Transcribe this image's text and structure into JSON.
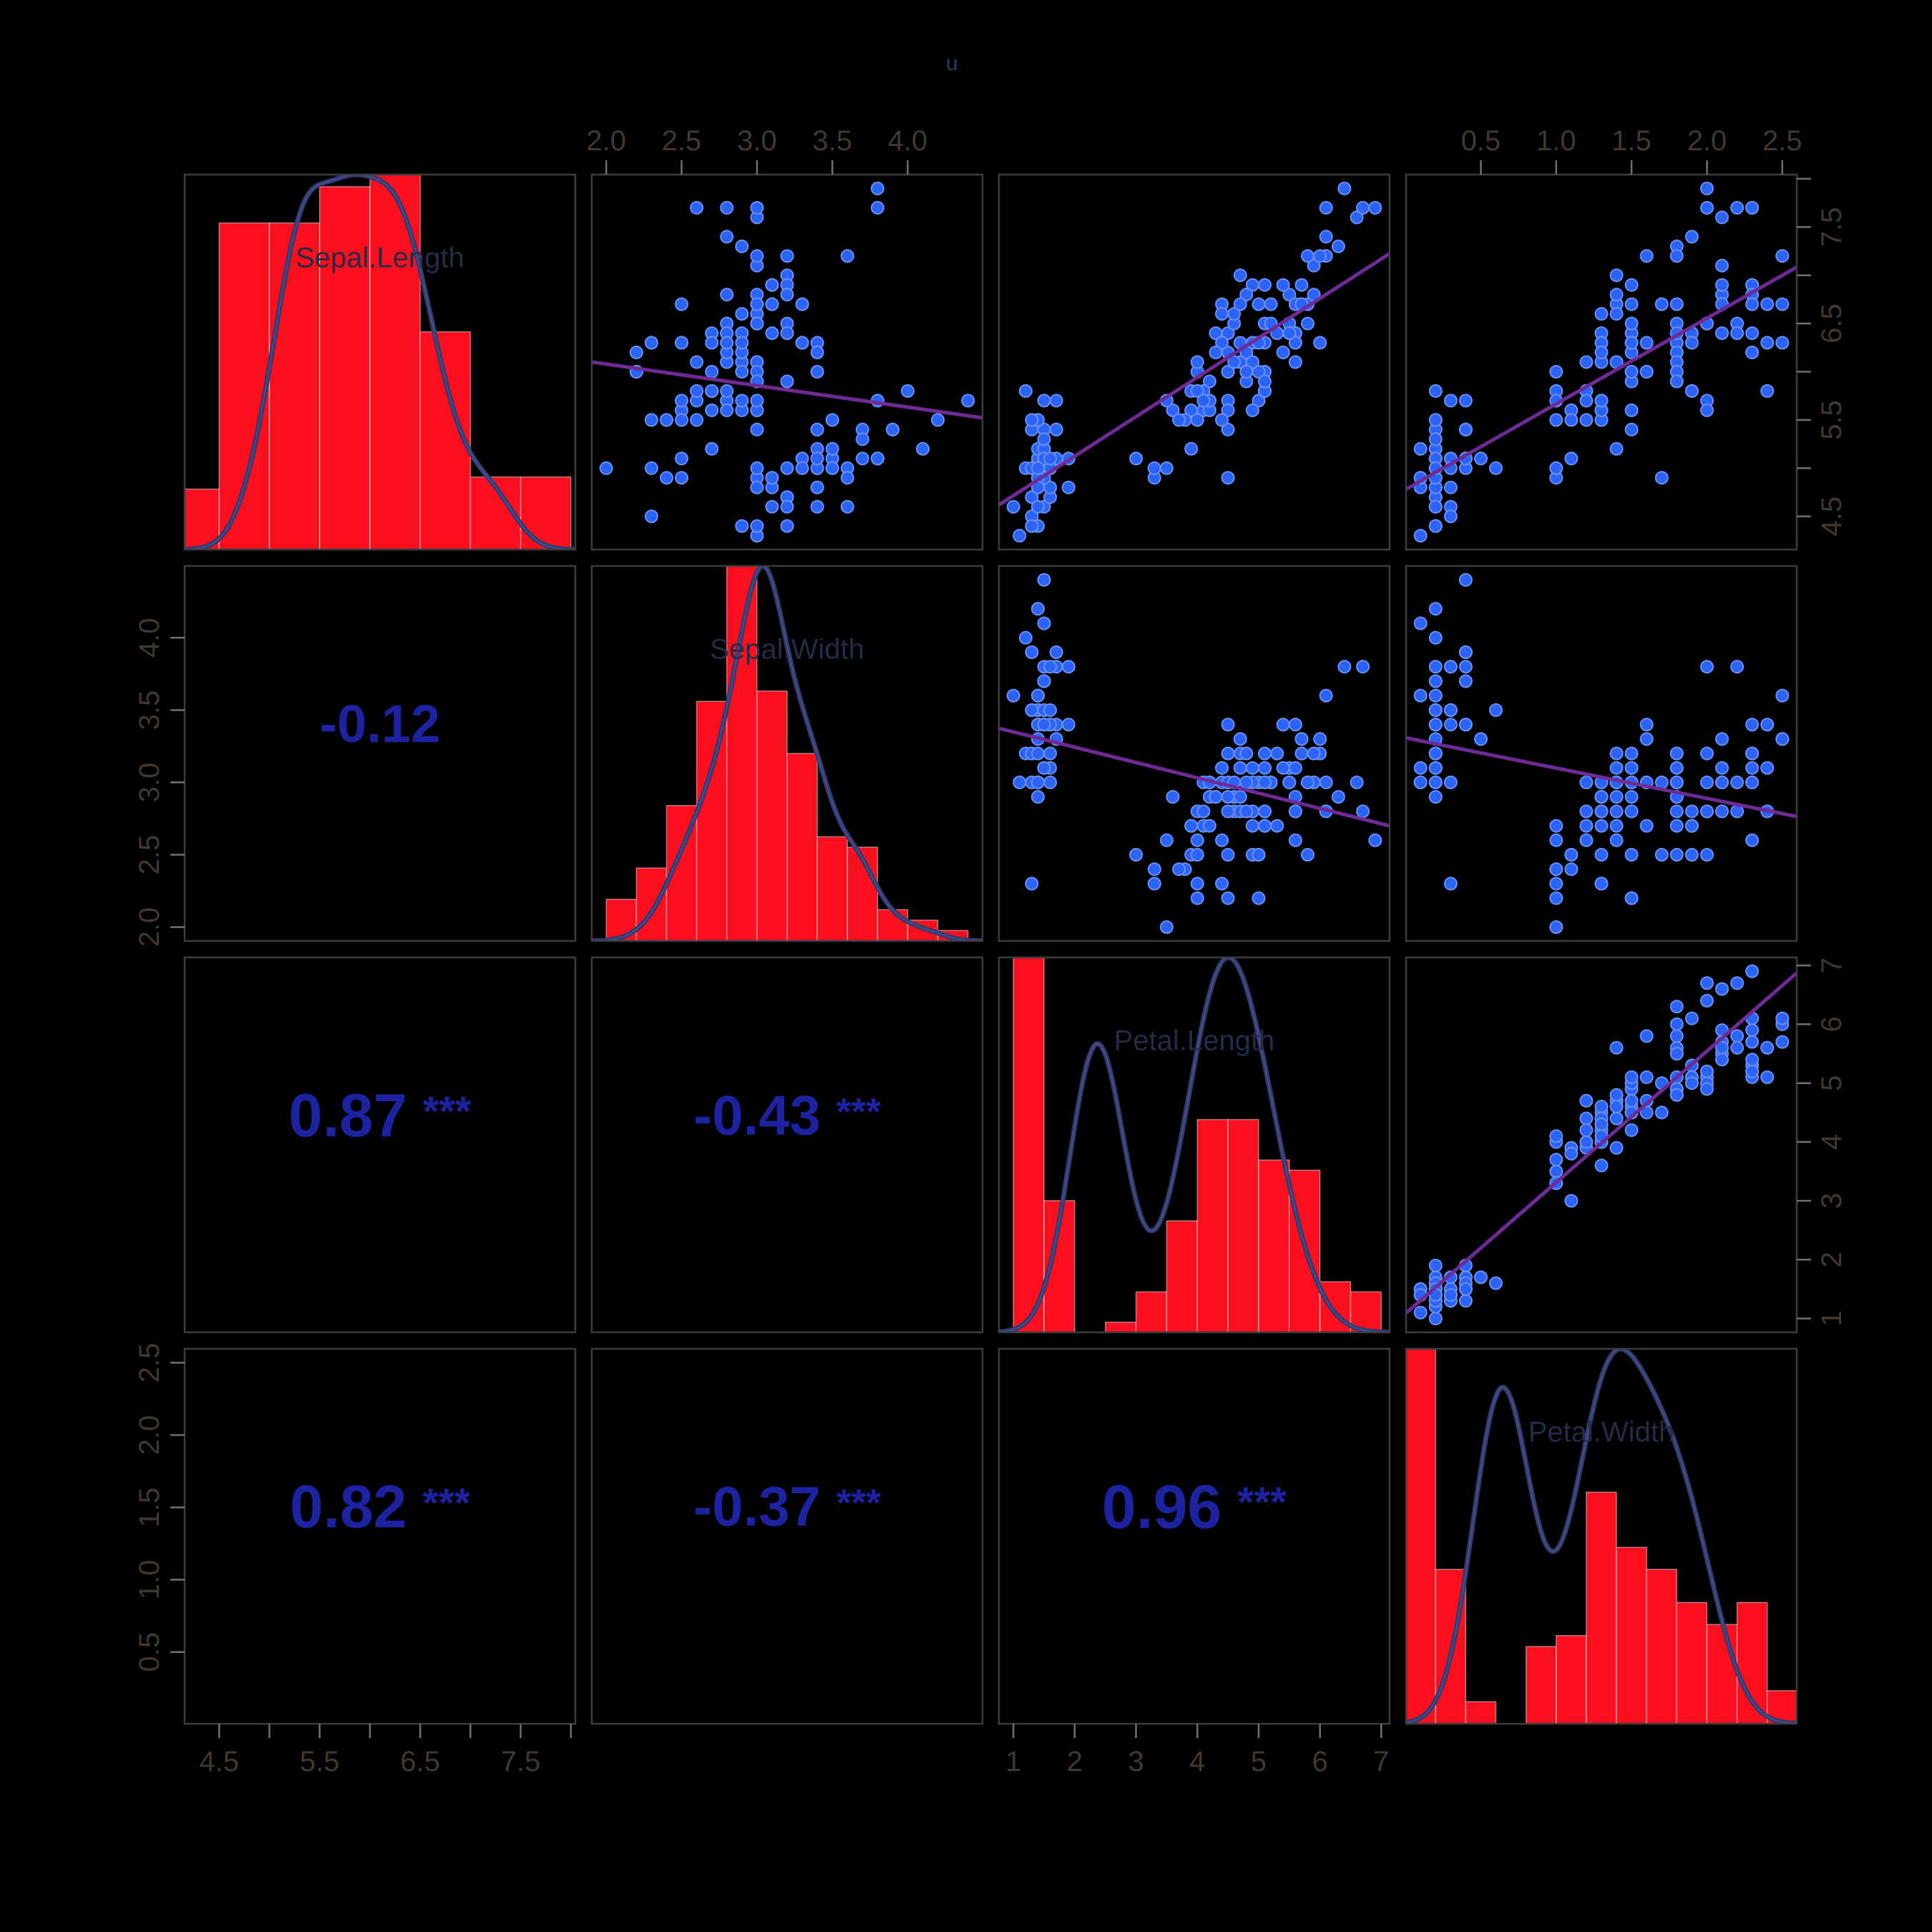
{
  "title": "u",
  "colors": {
    "background": "#000000",
    "histogram_fill": "#fb0f1e",
    "histogram_edge": "#ffffff",
    "density_line": "#323a6d",
    "density_highlight": "#545ea6",
    "point_fill": "#2a63f6",
    "point_edge": "#6b91f8",
    "regression_line": "#6e2b96",
    "correlation_text": "#1d22a0",
    "tick_label": "#41382e",
    "tick_mark": "#6f6f6f",
    "panel_frame": "#3a3d42",
    "variable_label": "#232b47",
    "title_color": "#2b3a66"
  },
  "variables": [
    {
      "name": "Sepal.Length",
      "min": 4.3,
      "max": 7.9,
      "hist": {
        "start": 4.0,
        "step": 0.5,
        "counts": [
          5,
          27,
          27,
          30,
          31,
          18,
          6,
          6
        ]
      },
      "ticks": [
        {
          "v": 4.5,
          "t": "4.5"
        },
        {
          "v": 5.0,
          "t": ""
        },
        {
          "v": 5.5,
          "t": "5.5"
        },
        {
          "v": 6.0,
          "t": ""
        },
        {
          "v": 6.5,
          "t": "6.5"
        },
        {
          "v": 7.0,
          "t": ""
        },
        {
          "v": 7.5,
          "t": "7.5"
        },
        {
          "v": 8.0,
          "t": ""
        }
      ]
    },
    {
      "name": "Sepal.Width",
      "min": 2.0,
      "max": 4.4,
      "hist": {
        "start": 2.0,
        "step": 0.2,
        "counts": [
          4,
          7,
          13,
          23,
          36,
          24,
          18,
          10,
          9,
          3,
          2,
          1
        ]
      },
      "ticks": [
        {
          "v": 2.0,
          "t": "2.0"
        },
        {
          "v": 2.5,
          "t": "2.5"
        },
        {
          "v": 3.0,
          "t": "3.0"
        },
        {
          "v": 3.5,
          "t": "3.5"
        },
        {
          "v": 4.0,
          "t": "4.0"
        }
      ]
    },
    {
      "name": "Petal.Length",
      "min": 1.0,
      "max": 6.9,
      "hist": {
        "start": 1.0,
        "step": 0.5,
        "counts": [
          37,
          13,
          0,
          1,
          4,
          11,
          21,
          21,
          17,
          16,
          5,
          4
        ]
      },
      "ticks": [
        {
          "v": 1,
          "t": "1"
        },
        {
          "v": 2,
          "t": "2"
        },
        {
          "v": 3,
          "t": "3"
        },
        {
          "v": 4,
          "t": "4"
        },
        {
          "v": 5,
          "t": "5"
        },
        {
          "v": 6,
          "t": "6"
        },
        {
          "v": 7,
          "t": "7"
        }
      ]
    },
    {
      "name": "Petal.Width",
      "min": 0.1,
      "max": 2.5,
      "hist": {
        "start": 0.0,
        "step": 0.2,
        "counts": [
          34,
          14,
          2,
          0,
          7,
          8,
          21,
          16,
          14,
          11,
          9,
          11,
          3
        ]
      },
      "ticks": [
        {
          "v": 0.5,
          "t": "0.5"
        },
        {
          "v": 1.0,
          "t": "1.0"
        },
        {
          "v": 1.5,
          "t": "1.5"
        },
        {
          "v": 2.0,
          "t": "2.0"
        },
        {
          "v": 2.5,
          "t": "2.5"
        }
      ]
    }
  ],
  "axes": [
    {
      "var": 0,
      "side": "bottom",
      "col": 0
    },
    {
      "var": 1,
      "side": "top",
      "col": 1
    },
    {
      "var": 2,
      "side": "bottom",
      "col": 2
    },
    {
      "var": 3,
      "side": "top",
      "col": 3
    },
    {
      "var": 0,
      "side": "right",
      "row": 0
    },
    {
      "var": 1,
      "side": "left",
      "row": 1
    },
    {
      "var": 2,
      "side": "right",
      "row": 2
    },
    {
      "var": 3,
      "side": "left",
      "row": 3
    }
  ],
  "correlations": [
    {
      "row": 1,
      "col": 0,
      "value": "-0.12",
      "stars": ""
    },
    {
      "row": 2,
      "col": 0,
      "value": "0.87",
      "stars": "***"
    },
    {
      "row": 2,
      "col": 1,
      "value": "-0.43",
      "stars": "***"
    },
    {
      "row": 3,
      "col": 0,
      "value": "0.82",
      "stars": "***"
    },
    {
      "row": 3,
      "col": 1,
      "value": "-0.37",
      "stars": "***"
    },
    {
      "row": 3,
      "col": 2,
      "value": "0.96",
      "stars": "***"
    }
  ],
  "chart_data": {
    "type": "scatter",
    "subtype": "pairs-matrix",
    "title": "u",
    "variables": [
      "Sepal.Length",
      "Sepal.Width",
      "Petal.Length",
      "Petal.Width"
    ],
    "diagonal": "red histogram with navy density curve and variable label",
    "upper_triangle": "blue point scatter with purple linear fit line",
    "lower_triangle": "pearson correlation value with significance stars",
    "axis_ranges": {
      "Sepal.Length": [
        4.3,
        7.9
      ],
      "Sepal.Width": [
        2.0,
        4.4
      ],
      "Petal.Length": [
        1.0,
        6.9
      ],
      "Petal.Width": [
        0.1,
        2.5
      ]
    },
    "observations": {
      "Sepal.Length": [
        5.1,
        4.9,
        4.7,
        4.6,
        5.0,
        5.4,
        4.6,
        5.0,
        4.4,
        4.9,
        5.4,
        4.8,
        4.8,
        4.3,
        5.8,
        5.7,
        5.4,
        5.1,
        5.7,
        5.1,
        5.4,
        5.1,
        4.6,
        5.1,
        4.8,
        5.0,
        5.0,
        5.2,
        5.2,
        4.7,
        4.8,
        5.4,
        5.2,
        5.5,
        4.9,
        5.0,
        5.5,
        4.9,
        4.4,
        5.1,
        5.0,
        4.5,
        4.4,
        5.0,
        5.1,
        4.8,
        5.1,
        4.6,
        5.3,
        5.0,
        7.0,
        6.4,
        6.9,
        5.5,
        6.5,
        5.7,
        6.3,
        4.9,
        6.6,
        5.2,
        5.0,
        5.9,
        6.0,
        6.1,
        5.6,
        6.7,
        5.6,
        5.8,
        6.2,
        5.6,
        5.9,
        6.1,
        6.3,
        6.1,
        6.4,
        6.6,
        6.8,
        6.7,
        6.0,
        5.7,
        5.5,
        5.5,
        5.8,
        6.0,
        5.4,
        6.0,
        6.7,
        6.3,
        5.6,
        5.5,
        5.5,
        6.1,
        5.8,
        5.0,
        5.6,
        5.7,
        5.7,
        6.2,
        5.1,
        5.7,
        6.3,
        5.8,
        7.1,
        6.3,
        6.5,
        7.6,
        4.9,
        7.3,
        6.7,
        7.2,
        6.5,
        6.4,
        6.8,
        5.7,
        5.8,
        6.4,
        6.5,
        7.7,
        7.7,
        6.0,
        6.9,
        5.6,
        7.7,
        6.3,
        6.7,
        7.2,
        6.2,
        6.1,
        6.4,
        7.2,
        7.4,
        7.9,
        6.4,
        6.3,
        6.1,
        7.7,
        6.3,
        6.4,
        6.0,
        6.9,
        6.7,
        6.9,
        5.8,
        6.8,
        6.7,
        6.7,
        6.3,
        6.5,
        6.2,
        5.9
      ],
      "Sepal.Width": [
        3.5,
        3.0,
        3.2,
        3.1,
        3.6,
        3.9,
        3.4,
        3.4,
        2.9,
        3.1,
        3.7,
        3.4,
        3.0,
        3.0,
        4.0,
        4.4,
        3.9,
        3.5,
        3.8,
        3.8,
        3.4,
        3.7,
        3.6,
        3.3,
        3.4,
        3.0,
        3.4,
        3.5,
        3.4,
        3.2,
        3.1,
        3.4,
        4.1,
        4.2,
        3.1,
        3.2,
        3.5,
        3.6,
        3.0,
        3.4,
        3.5,
        2.3,
        3.2,
        3.5,
        3.8,
        3.0,
        3.8,
        3.2,
        3.7,
        3.3,
        3.2,
        3.2,
        3.1,
        2.3,
        2.8,
        2.8,
        3.3,
        2.4,
        2.9,
        2.7,
        2.0,
        3.0,
        2.2,
        2.9,
        2.9,
        3.1,
        3.0,
        2.7,
        2.2,
        2.5,
        3.2,
        2.8,
        2.5,
        2.8,
        2.9,
        3.0,
        2.8,
        3.0,
        2.9,
        2.6,
        2.4,
        2.4,
        2.7,
        2.7,
        3.0,
        3.4,
        3.1,
        2.3,
        3.0,
        2.5,
        2.6,
        3.0,
        2.6,
        2.3,
        2.7,
        3.0,
        2.9,
        2.9,
        2.5,
        2.8,
        3.3,
        2.7,
        3.0,
        2.9,
        3.0,
        3.0,
        2.5,
        2.9,
        2.5,
        3.6,
        3.2,
        2.7,
        3.0,
        2.5,
        2.8,
        3.2,
        3.0,
        3.8,
        2.6,
        2.2,
        3.2,
        2.8,
        2.8,
        2.7,
        3.3,
        3.2,
        2.8,
        3.0,
        2.8,
        3.0,
        2.8,
        3.8,
        2.8,
        2.8,
        2.6,
        3.0,
        3.4,
        3.1,
        3.0,
        3.1,
        3.1,
        3.1,
        2.7,
        3.2,
        3.3,
        3.0,
        2.5,
        3.0,
        3.4,
        3.0
      ],
      "Petal.Length": [
        1.4,
        1.4,
        1.3,
        1.5,
        1.4,
        1.7,
        1.4,
        1.5,
        1.4,
        1.5,
        1.5,
        1.6,
        1.4,
        1.1,
        1.2,
        1.5,
        1.3,
        1.4,
        1.7,
        1.5,
        1.7,
        1.5,
        1.0,
        1.7,
        1.9,
        1.6,
        1.6,
        1.5,
        1.4,
        1.6,
        1.6,
        1.5,
        1.5,
        1.4,
        1.5,
        1.2,
        1.3,
        1.4,
        1.3,
        1.5,
        1.3,
        1.3,
        1.3,
        1.6,
        1.9,
        1.4,
        1.6,
        1.4,
        1.5,
        1.4,
        4.7,
        4.5,
        4.9,
        4.0,
        4.6,
        4.5,
        4.7,
        3.3,
        4.6,
        3.9,
        3.5,
        4.2,
        4.0,
        4.7,
        3.6,
        4.4,
        4.5,
        4.1,
        4.5,
        3.9,
        4.8,
        4.0,
        4.9,
        4.7,
        4.3,
        4.4,
        4.8,
        5.0,
        4.5,
        3.5,
        3.8,
        3.7,
        3.9,
        5.1,
        4.5,
        4.5,
        4.7,
        4.4,
        4.1,
        4.0,
        4.4,
        4.6,
        4.0,
        3.3,
        4.2,
        4.2,
        4.2,
        4.3,
        3.0,
        4.1,
        6.0,
        5.1,
        5.9,
        5.6,
        5.8,
        6.6,
        4.5,
        6.3,
        5.8,
        6.1,
        5.1,
        5.3,
        5.5,
        5.0,
        5.1,
        5.3,
        5.5,
        6.7,
        6.9,
        5.0,
        5.7,
        4.9,
        6.7,
        4.9,
        5.7,
        6.0,
        4.8,
        4.9,
        5.6,
        5.8,
        6.1,
        6.4,
        5.6,
        5.1,
        5.6,
        6.1,
        5.6,
        5.5,
        4.8,
        5.4,
        5.6,
        5.1,
        5.1,
        5.9,
        5.7,
        5.2,
        5.0,
        5.2,
        5.4,
        5.1
      ],
      "Petal.Width": [
        0.2,
        0.2,
        0.2,
        0.2,
        0.2,
        0.4,
        0.3,
        0.2,
        0.2,
        0.1,
        0.2,
        0.2,
        0.1,
        0.1,
        0.2,
        0.4,
        0.4,
        0.3,
        0.3,
        0.3,
        0.2,
        0.4,
        0.2,
        0.5,
        0.2,
        0.2,
        0.4,
        0.2,
        0.2,
        0.2,
        0.2,
        0.4,
        0.1,
        0.2,
        0.2,
        0.2,
        0.2,
        0.1,
        0.2,
        0.2,
        0.3,
        0.3,
        0.2,
        0.6,
        0.4,
        0.3,
        0.2,
        0.2,
        0.2,
        0.2,
        1.4,
        1.5,
        1.5,
        1.3,
        1.5,
        1.3,
        1.6,
        1.0,
        1.3,
        1.4,
        1.0,
        1.5,
        1.0,
        1.4,
        1.3,
        1.4,
        1.5,
        1.0,
        1.5,
        1.1,
        1.8,
        1.3,
        1.5,
        1.2,
        1.3,
        1.4,
        1.4,
        1.7,
        1.5,
        1.0,
        1.1,
        1.0,
        1.2,
        1.6,
        1.5,
        1.6,
        1.5,
        1.3,
        1.3,
        1.3,
        1.2,
        1.4,
        1.2,
        1.0,
        1.3,
        1.2,
        1.3,
        1.3,
        1.1,
        1.3,
        2.5,
        1.9,
        2.1,
        1.8,
        2.2,
        2.1,
        1.7,
        1.8,
        1.8,
        2.5,
        2.0,
        1.9,
        2.1,
        2.0,
        2.4,
        2.3,
        1.8,
        2.2,
        2.3,
        1.5,
        2.3,
        2.0,
        2.0,
        1.8,
        2.1,
        1.8,
        1.8,
        1.8,
        2.1,
        1.6,
        1.9,
        2.0,
        2.2,
        1.5,
        1.4,
        2.3,
        2.4,
        1.8,
        1.8,
        2.1,
        2.4,
        2.3,
        1.9,
        2.3,
        2.5,
        2.3,
        1.9,
        2.0,
        2.3,
        1.8
      ]
    }
  }
}
